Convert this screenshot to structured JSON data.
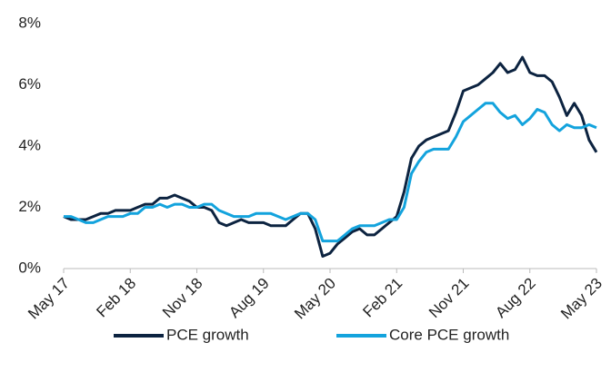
{
  "chart_data": {
    "type": "line",
    "categories": [
      "May 17",
      null,
      null,
      null,
      null,
      null,
      null,
      null,
      null,
      "Feb 18",
      null,
      null,
      null,
      null,
      null,
      null,
      null,
      null,
      "Nov 18",
      null,
      null,
      null,
      null,
      null,
      null,
      null,
      null,
      "Aug 19",
      null,
      null,
      null,
      null,
      null,
      null,
      null,
      null,
      "May 20",
      null,
      null,
      null,
      null,
      null,
      null,
      null,
      null,
      "Feb 21",
      null,
      null,
      null,
      null,
      null,
      null,
      null,
      null,
      "Nov 21",
      null,
      null,
      null,
      null,
      null,
      null,
      null,
      null,
      "Aug 22",
      null,
      null,
      null,
      null,
      null,
      null,
      null,
      null,
      "May 23"
    ],
    "series": [
      {
        "name": "PCE growth",
        "color": "#0c2340",
        "values": [
          1.7,
          1.6,
          1.6,
          1.6,
          1.7,
          1.8,
          1.8,
          1.9,
          1.9,
          1.9,
          2.0,
          2.1,
          2.1,
          2.3,
          2.3,
          2.4,
          2.3,
          2.2,
          2.0,
          2.0,
          1.9,
          1.5,
          1.4,
          1.5,
          1.6,
          1.5,
          1.5,
          1.5,
          1.4,
          1.4,
          1.4,
          1.6,
          1.8,
          1.8,
          1.3,
          0.4,
          0.5,
          0.8,
          1.0,
          1.2,
          1.3,
          1.1,
          1.1,
          1.3,
          1.5,
          1.7,
          2.5,
          3.6,
          4.0,
          4.2,
          4.3,
          4.4,
          4.5,
          5.1,
          5.8,
          5.9,
          6.0,
          6.2,
          6.4,
          6.7,
          6.4,
          6.5,
          6.9,
          6.4,
          6.3,
          6.3,
          6.1,
          5.6,
          5.0,
          5.4,
          5.0,
          4.2,
          3.8
        ]
      },
      {
        "name": "Core PCE growth",
        "color": "#13a3dd",
        "values": [
          1.7,
          1.7,
          1.6,
          1.5,
          1.5,
          1.6,
          1.7,
          1.7,
          1.7,
          1.8,
          1.8,
          2.0,
          2.0,
          2.1,
          2.0,
          2.1,
          2.1,
          2.0,
          2.0,
          2.1,
          2.1,
          1.9,
          1.8,
          1.7,
          1.7,
          1.7,
          1.8,
          1.8,
          1.8,
          1.7,
          1.6,
          1.7,
          1.8,
          1.8,
          1.6,
          0.9,
          0.9,
          0.9,
          1.1,
          1.3,
          1.4,
          1.4,
          1.4,
          1.5,
          1.6,
          1.6,
          2.0,
          3.1,
          3.5,
          3.8,
          3.9,
          3.9,
          3.9,
          4.3,
          4.8,
          5.0,
          5.2,
          5.4,
          5.4,
          5.1,
          4.9,
          5.0,
          4.7,
          4.9,
          5.2,
          5.1,
          4.7,
          4.5,
          4.7,
          4.6,
          4.6,
          4.7,
          4.6
        ]
      }
    ],
    "ylim": [
      0,
      8
    ],
    "yticks": [
      {
        "value": 0,
        "label": "0%"
      },
      {
        "value": 2,
        "label": "2%"
      },
      {
        "value": 4,
        "label": "4%"
      },
      {
        "value": 6,
        "label": "6%"
      },
      {
        "value": 8,
        "label": "8%"
      }
    ],
    "grid": false,
    "legend": "bottom"
  }
}
